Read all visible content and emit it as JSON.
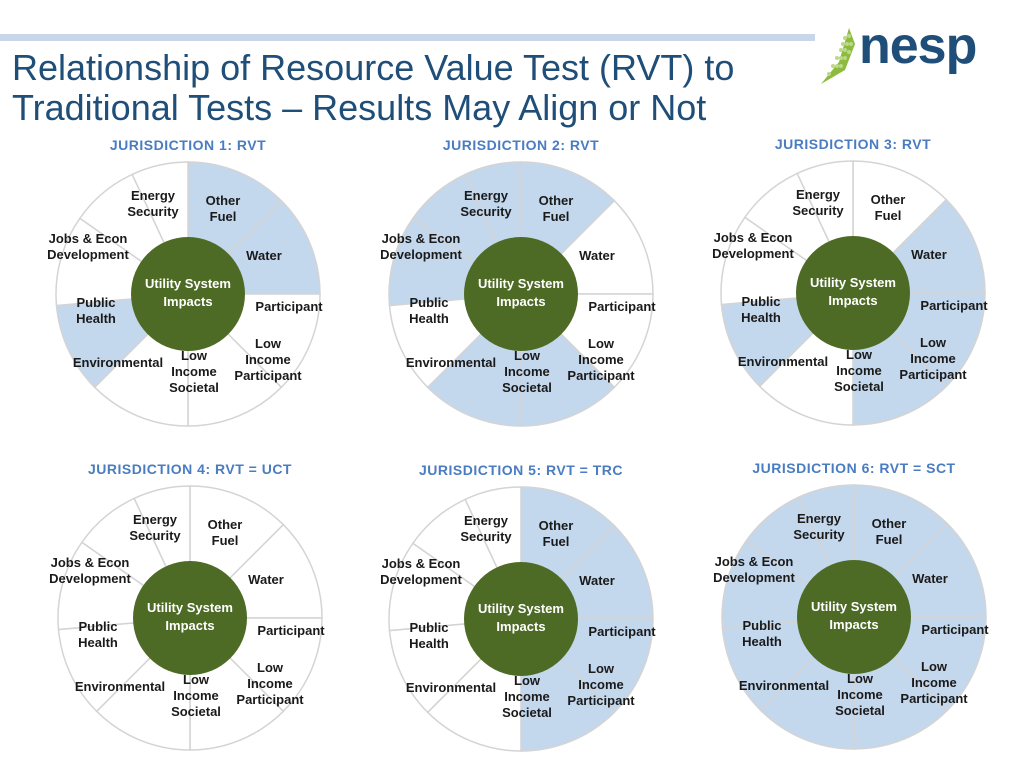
{
  "header": {
    "title": "Relationship of Resource Value Test (RVT) to Traditional Tests – Results May Align or Not",
    "logo_text": "nesp"
  },
  "colors": {
    "included": "#c3d7ed",
    "excluded": "#ffffff",
    "hub": "#4e6b26",
    "jurisdiction_title": "#4a7cc2",
    "title": "#1f4e79"
  },
  "wheel": {
    "hub": [
      "Utility System",
      "Impacts"
    ],
    "segments": [
      {
        "key": "other_fuel",
        "lines": [
          "Other",
          "Fuel"
        ]
      },
      {
        "key": "water",
        "lines": [
          "Water"
        ]
      },
      {
        "key": "participant",
        "lines": [
          "Participant"
        ]
      },
      {
        "key": "low_income_participant",
        "lines": [
          "Low",
          "Income",
          "Participant"
        ]
      },
      {
        "key": "low_income_societal",
        "lines": [
          "Low",
          "Income",
          "Societal"
        ]
      },
      {
        "key": "environmental",
        "lines": [
          "Environmental"
        ]
      },
      {
        "key": "public_health",
        "lines": [
          "Public",
          "Health"
        ]
      },
      {
        "key": "jobs_econ",
        "lines": [
          "Jobs & Econ",
          "Development"
        ]
      },
      {
        "key": "energy_security",
        "lines": [
          "Energy",
          "Security"
        ]
      }
    ]
  },
  "jurisdictions": [
    {
      "title": "JURISDICTION 1: RVT",
      "included": [
        "other_fuel",
        "water",
        "environmental"
      ]
    },
    {
      "title": "JURISDICTION 2: RVT",
      "included": [
        "other_fuel",
        "low_income_participant",
        "low_income_societal",
        "public_health",
        "jobs_econ",
        "energy_security"
      ]
    },
    {
      "title": "JURISDICTION 3: RVT",
      "included": [
        "water",
        "participant",
        "low_income_participant",
        "environmental"
      ]
    },
    {
      "title": "JURISDICTION 4: RVT = UCT",
      "included": []
    },
    {
      "title": "JURISDICTION 5: RVT = TRC",
      "included": [
        "other_fuel",
        "water",
        "participant",
        "low_income_participant"
      ]
    },
    {
      "title": "JURISDICTION 6: RVT = SCT",
      "included": [
        "other_fuel",
        "water",
        "participant",
        "low_income_participant",
        "low_income_societal",
        "environmental",
        "public_health",
        "jobs_econ",
        "energy_security"
      ]
    }
  ]
}
